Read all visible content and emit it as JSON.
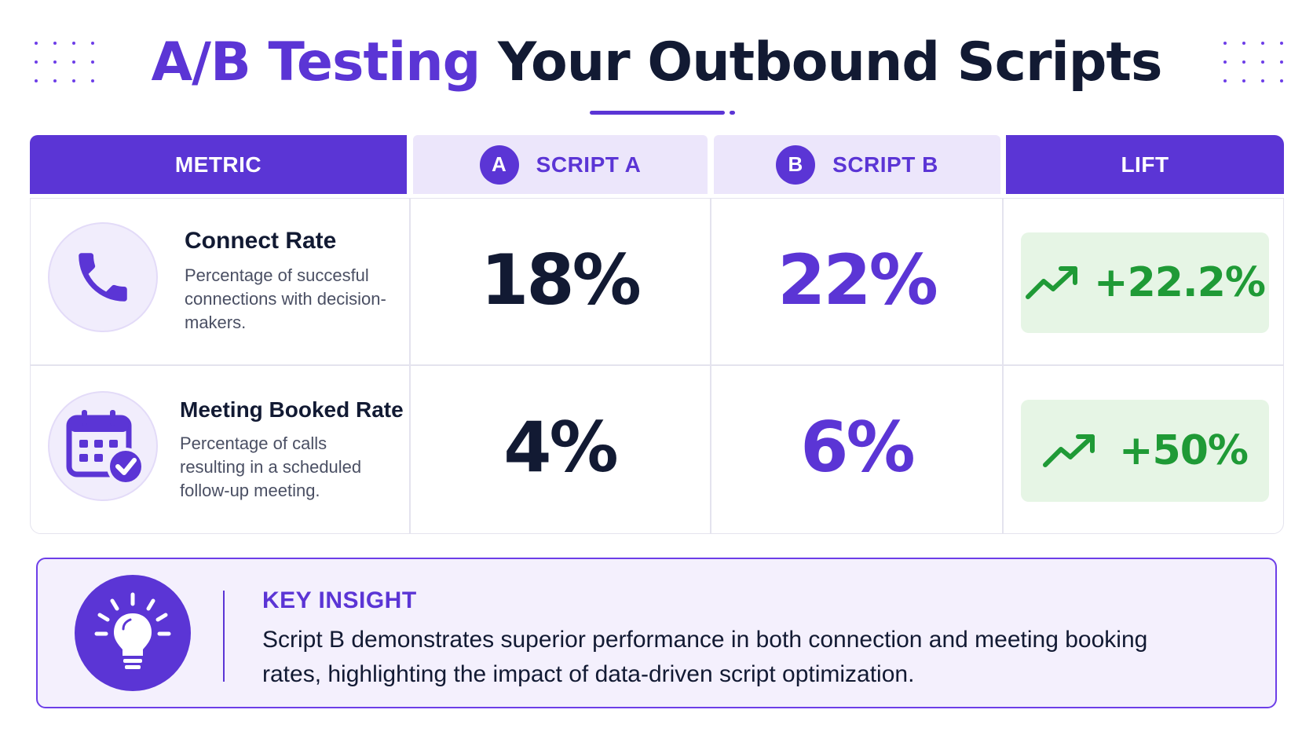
{
  "title": {
    "accent": "A/B Testing",
    "rest": "Your Outbound Scripts"
  },
  "table": {
    "headers": {
      "metric": "METRIC",
      "script_a": "SCRIPT A",
      "script_a_badge": "A",
      "script_b": "SCRIPT B",
      "script_b_badge": "B",
      "lift": "LIFT"
    },
    "rows": [
      {
        "icon": "phone-icon",
        "name": "Connect Rate",
        "description": "Percentage of succesful connections with decision-makers.",
        "script_a": "18%",
        "script_b": "22%",
        "lift": "+22.2%"
      },
      {
        "icon": "calendar-check-icon",
        "name": "Meeting Booked Rate",
        "description": "Percentage of calls resulting in a scheduled follow-up meeting.",
        "script_a": "4%",
        "script_b": "6%",
        "lift": "+50%"
      }
    ]
  },
  "insight": {
    "icon": "lightbulb-icon",
    "title": "KEY INSIGHT",
    "text": "Script B demonstrates superior performance in both connection and meeting booking rates, highlighting the impact of data-driven script optimization."
  },
  "colors": {
    "brand": "#5b35d5",
    "lift_green": "#1f9a36",
    "lift_bg": "#e6f5e5"
  }
}
